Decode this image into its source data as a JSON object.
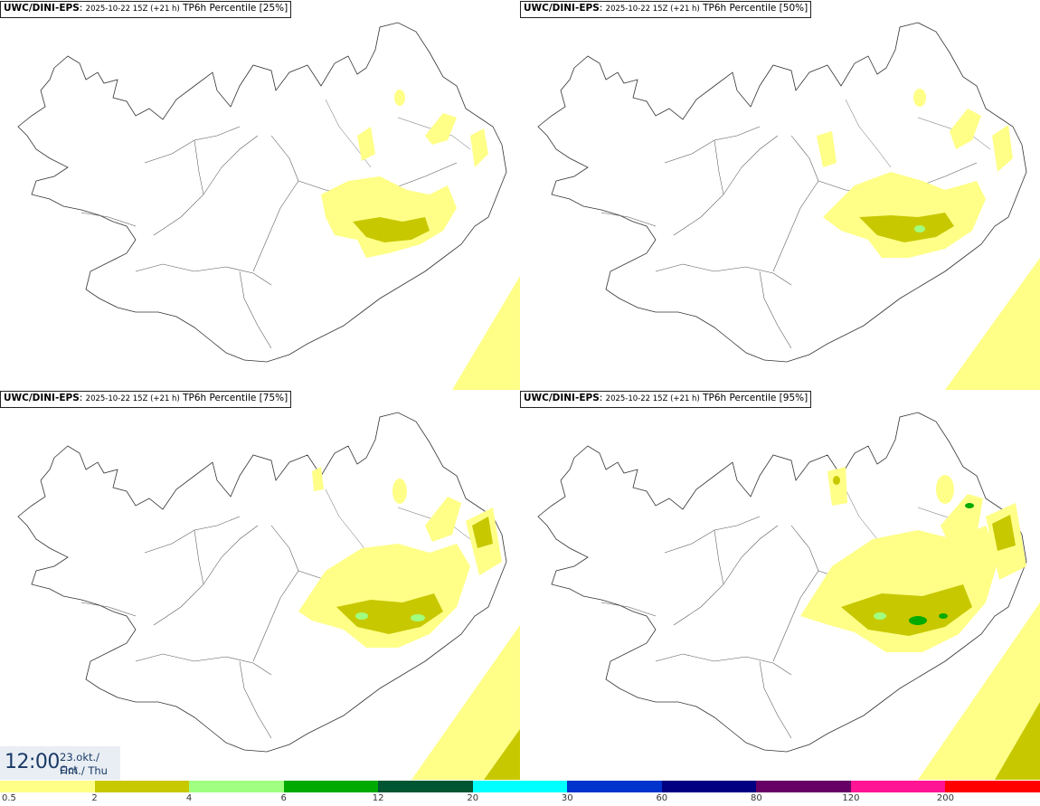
{
  "panels": [
    {
      "model": "UWC/DINI-EPS",
      "run": "2025-10-22 15Z (+21 h)",
      "field": "TP6h Percentile [25%]"
    },
    {
      "model": "UWC/DINI-EPS",
      "run": "2025-10-22 15Z (+21 h)",
      "field": "TP6h Percentile [50%]"
    },
    {
      "model": "UWC/DINI-EPS",
      "run": "2025-10-22 15Z (+21 h)",
      "field": "TP6h Percentile [75%]"
    },
    {
      "model": "UWC/DINI-EPS",
      "run": "2025-10-22 15Z (+21 h)",
      "field": "TP6h Percentile [95%]"
    }
  ],
  "valid_time": {
    "time": "12:00",
    "date": "23.okt./ Oct",
    "day": "Fim./ Thu"
  },
  "legend": {
    "ticks": [
      "0.5",
      "2",
      "4",
      "6",
      "12",
      "20",
      "30",
      "60",
      "80",
      "120",
      "200"
    ],
    "colors": [
      "#ffff88",
      "#c8c800",
      "#a0ff80",
      "#00aa00",
      "#005533",
      "#00ffff",
      "#0033cc",
      "#000080",
      "#660066",
      "#ff1493",
      "#ff0000"
    ]
  },
  "colors": {
    "level1": "#ffff88",
    "level2": "#c8c800",
    "level3": "#a0ff80",
    "level4": "#00aa00"
  }
}
